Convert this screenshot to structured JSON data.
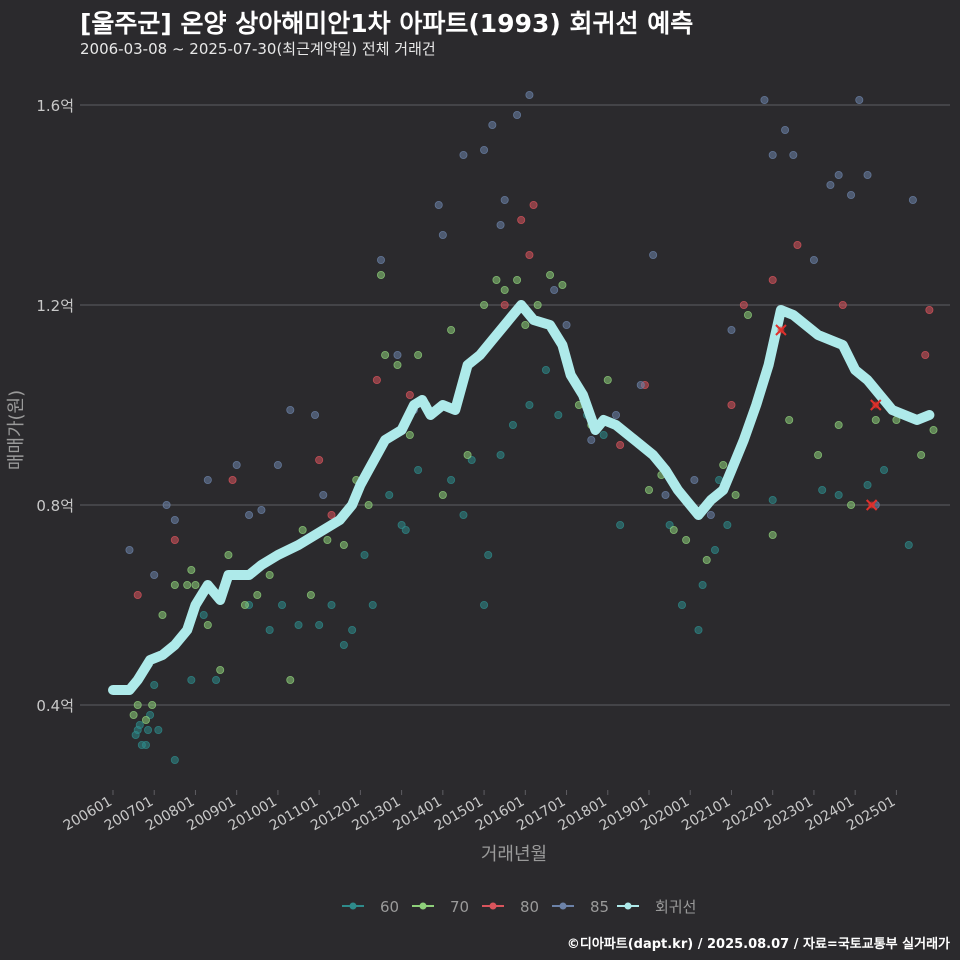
{
  "title": "[울주군] 온양 상아해미안1차 아파트(1993) 회귀선 예측",
  "subtitle": "2006-03-08 ~ 2025-07-30(최근계약일) 전체 거래건",
  "caption": "©디아파트(dapt.kr) / 2025.08.07 / 자료=국토교통부 실거래가",
  "colors": {
    "background": "#2b2a2d",
    "grid": "#5e5d62",
    "axis_text": "#c8c8c8",
    "s60": "#2e8b8b",
    "s70": "#8ed07a",
    "s80": "#d9545c",
    "s85": "#6c82a8",
    "regression": "#aeeaea",
    "highlight": "#e0302c"
  },
  "chart_data": {
    "type": "scatter",
    "xlabel": "거래년월",
    "ylabel": "매매가(원)",
    "x_ticks": [
      "200601",
      "200701",
      "200801",
      "200901",
      "201001",
      "201101",
      "201201",
      "201301",
      "201401",
      "201501",
      "201601",
      "201701",
      "201801",
      "201901",
      "202001",
      "202101",
      "202201",
      "202301",
      "202401",
      "202501"
    ],
    "y_ticks": [
      "0.4억",
      "0.8억",
      "1.2억",
      "1.6억"
    ],
    "y_tick_values": [
      0.4,
      0.8,
      1.2,
      1.6
    ],
    "ylim": [
      0.23,
      1.65
    ],
    "xlim": [
      2005.2,
      2026.3
    ],
    "grid": true,
    "legend_position": "bottom",
    "legend": [
      {
        "key": "60",
        "label": "60"
      },
      {
        "key": "70",
        "label": "70"
      },
      {
        "key": "80",
        "label": "80"
      },
      {
        "key": "85",
        "label": "85"
      },
      {
        "key": "reg",
        "label": "회귀선"
      }
    ],
    "series": [
      {
        "name": "60",
        "points": [
          [
            2006.55,
            0.34
          ],
          [
            2006.6,
            0.35
          ],
          [
            2006.65,
            0.36
          ],
          [
            2006.7,
            0.32
          ],
          [
            2006.8,
            0.32
          ],
          [
            2006.85,
            0.35
          ],
          [
            2006.9,
            0.38
          ],
          [
            2007.0,
            0.44
          ],
          [
            2007.1,
            0.35
          ],
          [
            2007.5,
            0.29
          ],
          [
            2007.9,
            0.45
          ],
          [
            2008.2,
            0.58
          ],
          [
            2008.5,
            0.45
          ],
          [
            2009.3,
            0.6
          ],
          [
            2009.8,
            0.55
          ],
          [
            2010.1,
            0.6
          ],
          [
            2010.5,
            0.56
          ],
          [
            2011.0,
            0.56
          ],
          [
            2011.3,
            0.6
          ],
          [
            2011.6,
            0.52
          ],
          [
            2011.8,
            0.55
          ],
          [
            2012.1,
            0.7
          ],
          [
            2012.3,
            0.6
          ],
          [
            2012.7,
            0.82
          ],
          [
            2013.0,
            0.76
          ],
          [
            2013.1,
            0.75
          ],
          [
            2013.4,
            0.87
          ],
          [
            2014.2,
            0.85
          ],
          [
            2014.5,
            0.78
          ],
          [
            2014.7,
            0.89
          ],
          [
            2015.0,
            0.6
          ],
          [
            2015.1,
            0.7
          ],
          [
            2015.4,
            0.9
          ],
          [
            2015.7,
            0.96
          ],
          [
            2016.1,
            1.0
          ],
          [
            2016.5,
            1.07
          ],
          [
            2016.8,
            0.98
          ],
          [
            2017.5,
            0.98
          ],
          [
            2017.9,
            0.94
          ],
          [
            2018.3,
            0.76
          ],
          [
            2019.5,
            0.76
          ],
          [
            2019.8,
            0.6
          ],
          [
            2020.2,
            0.55
          ],
          [
            2020.3,
            0.64
          ],
          [
            2020.6,
            0.71
          ],
          [
            2020.7,
            0.85
          ],
          [
            2020.9,
            0.76
          ],
          [
            2022.0,
            0.81
          ],
          [
            2023.2,
            0.83
          ],
          [
            2023.6,
            0.82
          ],
          [
            2024.3,
            0.84
          ],
          [
            2024.7,
            0.87
          ],
          [
            2025.3,
            0.72
          ]
        ]
      },
      {
        "name": "70",
        "points": [
          [
            2006.5,
            0.38
          ],
          [
            2006.6,
            0.4
          ],
          [
            2006.8,
            0.37
          ],
          [
            2006.95,
            0.4
          ],
          [
            2007.2,
            0.58
          ],
          [
            2007.5,
            0.64
          ],
          [
            2007.8,
            0.64
          ],
          [
            2007.9,
            0.67
          ],
          [
            2008.0,
            0.64
          ],
          [
            2008.3,
            0.56
          ],
          [
            2008.6,
            0.47
          ],
          [
            2008.8,
            0.7
          ],
          [
            2009.2,
            0.6
          ],
          [
            2009.5,
            0.62
          ],
          [
            2009.8,
            0.66
          ],
          [
            2010.3,
            0.45
          ],
          [
            2010.6,
            0.75
          ],
          [
            2010.8,
            0.62
          ],
          [
            2011.2,
            0.73
          ],
          [
            2011.6,
            0.72
          ],
          [
            2011.9,
            0.85
          ],
          [
            2012.2,
            0.8
          ],
          [
            2012.5,
            1.26
          ],
          [
            2012.6,
            1.1
          ],
          [
            2012.9,
            1.08
          ],
          [
            2013.2,
            0.94
          ],
          [
            2013.4,
            1.1
          ],
          [
            2013.6,
            1.0
          ],
          [
            2014.0,
            0.82
          ],
          [
            2014.2,
            1.15
          ],
          [
            2014.6,
            0.9
          ],
          [
            2015.0,
            1.2
          ],
          [
            2015.3,
            1.25
          ],
          [
            2015.5,
            1.23
          ],
          [
            2015.8,
            1.25
          ],
          [
            2016.0,
            1.16
          ],
          [
            2016.3,
            1.2
          ],
          [
            2016.6,
            1.26
          ],
          [
            2016.9,
            1.24
          ],
          [
            2017.3,
            1.0
          ],
          [
            2017.6,
            0.96
          ],
          [
            2018.0,
            1.05
          ],
          [
            2019.0,
            0.83
          ],
          [
            2019.3,
            0.86
          ],
          [
            2019.6,
            0.75
          ],
          [
            2019.9,
            0.73
          ],
          [
            2020.4,
            0.69
          ],
          [
            2020.8,
            0.88
          ],
          [
            2021.1,
            0.82
          ],
          [
            2021.4,
            1.18
          ],
          [
            2022.0,
            0.74
          ],
          [
            2022.4,
            0.97
          ],
          [
            2023.1,
            0.9
          ],
          [
            2023.6,
            0.96
          ],
          [
            2023.9,
            0.8
          ],
          [
            2024.5,
            0.97
          ],
          [
            2025.0,
            0.97
          ],
          [
            2025.6,
            0.9
          ],
          [
            2025.9,
            0.95
          ]
        ]
      },
      {
        "name": "80",
        "points": [
          [
            2006.6,
            0.62
          ],
          [
            2007.5,
            0.73
          ],
          [
            2008.9,
            0.85
          ],
          [
            2011.0,
            0.89
          ],
          [
            2011.3,
            0.78
          ],
          [
            2012.4,
            1.05
          ],
          [
            2013.2,
            1.02
          ],
          [
            2015.5,
            1.2
          ],
          [
            2015.9,
            1.37
          ],
          [
            2016.1,
            1.3
          ],
          [
            2016.2,
            1.4
          ],
          [
            2018.3,
            0.92
          ],
          [
            2018.9,
            1.04
          ],
          [
            2021.0,
            1.0
          ],
          [
            2021.3,
            1.2
          ],
          [
            2022.0,
            1.25
          ],
          [
            2022.6,
            1.32
          ],
          [
            2023.7,
            1.2
          ],
          [
            2025.7,
            1.1
          ],
          [
            2025.8,
            1.19
          ]
        ]
      },
      {
        "name": "85",
        "points": [
          [
            2006.4,
            0.71
          ],
          [
            2007.0,
            0.66
          ],
          [
            2007.3,
            0.8
          ],
          [
            2007.5,
            0.77
          ],
          [
            2008.3,
            0.85
          ],
          [
            2009.0,
            0.88
          ],
          [
            2009.3,
            0.78
          ],
          [
            2009.6,
            0.79
          ],
          [
            2010.0,
            0.88
          ],
          [
            2010.3,
            0.99
          ],
          [
            2010.9,
            0.98
          ],
          [
            2011.1,
            0.82
          ],
          [
            2012.5,
            1.29
          ],
          [
            2012.9,
            1.1
          ],
          [
            2013.3,
            0.99
          ],
          [
            2013.9,
            1.4
          ],
          [
            2014.0,
            1.34
          ],
          [
            2014.5,
            1.5
          ],
          [
            2015.0,
            1.51
          ],
          [
            2015.2,
            1.56
          ],
          [
            2015.4,
            1.36
          ],
          [
            2015.5,
            1.41
          ],
          [
            2015.8,
            1.58
          ],
          [
            2016.1,
            1.62
          ],
          [
            2016.7,
            1.23
          ],
          [
            2017.0,
            1.16
          ],
          [
            2017.6,
            0.93
          ],
          [
            2018.2,
            0.98
          ],
          [
            2018.8,
            1.04
          ],
          [
            2019.1,
            1.3
          ],
          [
            2019.4,
            0.82
          ],
          [
            2020.1,
            0.85
          ],
          [
            2020.5,
            0.78
          ],
          [
            2021.0,
            1.15
          ],
          [
            2021.8,
            1.61
          ],
          [
            2022.0,
            1.5
          ],
          [
            2022.3,
            1.55
          ],
          [
            2022.5,
            1.5
          ],
          [
            2023.0,
            1.29
          ],
          [
            2023.4,
            1.44
          ],
          [
            2023.6,
            1.46
          ],
          [
            2023.9,
            1.42
          ],
          [
            2024.1,
            1.61
          ],
          [
            2024.3,
            1.46
          ],
          [
            2024.5,
            0.8
          ],
          [
            2025.4,
            1.41
          ]
        ]
      }
    ],
    "regression": [
      [
        2006.0,
        0.43
      ],
      [
        2006.4,
        0.43
      ],
      [
        2006.6,
        0.45
      ],
      [
        2006.9,
        0.49
      ],
      [
        2007.2,
        0.5
      ],
      [
        2007.5,
        0.52
      ],
      [
        2007.8,
        0.55
      ],
      [
        2008.0,
        0.6
      ],
      [
        2008.3,
        0.64
      ],
      [
        2008.6,
        0.61
      ],
      [
        2008.8,
        0.66
      ],
      [
        2009.3,
        0.66
      ],
      [
        2009.6,
        0.68
      ],
      [
        2010.0,
        0.7
      ],
      [
        2010.5,
        0.72
      ],
      [
        2010.9,
        0.74
      ],
      [
        2011.5,
        0.77
      ],
      [
        2011.8,
        0.8
      ],
      [
        2012.0,
        0.84
      ],
      [
        2012.2,
        0.87
      ],
      [
        2012.6,
        0.93
      ],
      [
        2013.0,
        0.95
      ],
      [
        2013.3,
        1.0
      ],
      [
        2013.5,
        1.01
      ],
      [
        2013.7,
        0.98
      ],
      [
        2014.0,
        1.0
      ],
      [
        2014.3,
        0.99
      ],
      [
        2014.6,
        1.08
      ],
      [
        2014.9,
        1.1
      ],
      [
        2015.2,
        1.13
      ],
      [
        2015.6,
        1.17
      ],
      [
        2015.9,
        1.2
      ],
      [
        2016.2,
        1.17
      ],
      [
        2016.6,
        1.16
      ],
      [
        2016.9,
        1.12
      ],
      [
        2017.1,
        1.06
      ],
      [
        2017.4,
        1.02
      ],
      [
        2017.7,
        0.95
      ],
      [
        2017.9,
        0.97
      ],
      [
        2018.2,
        0.96
      ],
      [
        2018.5,
        0.94
      ],
      [
        2018.8,
        0.92
      ],
      [
        2019.1,
        0.9
      ],
      [
        2019.4,
        0.87
      ],
      [
        2019.7,
        0.83
      ],
      [
        2020.0,
        0.8
      ],
      [
        2020.2,
        0.78
      ],
      [
        2020.5,
        0.81
      ],
      [
        2020.8,
        0.83
      ],
      [
        2021.0,
        0.87
      ],
      [
        2021.3,
        0.93
      ],
      [
        2021.6,
        1.0
      ],
      [
        2021.9,
        1.08
      ],
      [
        2022.2,
        1.19
      ],
      [
        2022.5,
        1.18
      ],
      [
        2022.8,
        1.16
      ],
      [
        2023.1,
        1.14
      ],
      [
        2023.4,
        1.13
      ],
      [
        2023.7,
        1.12
      ],
      [
        2024.0,
        1.07
      ],
      [
        2024.3,
        1.05
      ],
      [
        2024.6,
        1.02
      ],
      [
        2024.9,
        0.99
      ],
      [
        2025.2,
        0.98
      ],
      [
        2025.5,
        0.97
      ],
      [
        2025.8,
        0.98
      ]
    ],
    "highlights": [
      [
        2022.2,
        1.15
      ],
      [
        2024.5,
        1.0
      ],
      [
        2024.4,
        0.8
      ]
    ]
  }
}
